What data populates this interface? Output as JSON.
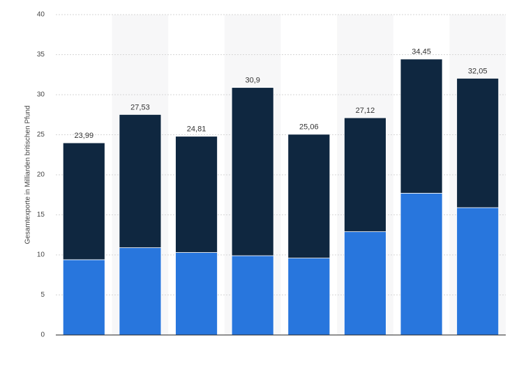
{
  "chart_data": {
    "type": "stacked-bar",
    "y_label": "Gesamtexporte in Milliarden britischen Pfund",
    "categories": [
      null,
      null,
      null,
      null,
      null,
      null,
      null,
      null
    ],
    "series": [
      {
        "color": "#2876dd",
        "values": [
          9.4,
          10.9,
          10.3,
          9.9,
          9.6,
          12.9,
          17.7,
          15.9
        ]
      },
      {
        "color": "#0f2740",
        "values": [
          14.59,
          16.63,
          14.51,
          21.0,
          15.46,
          14.22,
          16.75,
          16.15
        ]
      }
    ],
    "totals": [
      23.99,
      27.53,
      24.81,
      30.9,
      25.06,
      27.12,
      34.45,
      32.05
    ],
    "total_labels": [
      "23,99",
      "27,53",
      "24,81",
      "30,9",
      "25,06",
      "27,12",
      "34,45",
      "32,05"
    ],
    "ylim": [
      0,
      40
    ],
    "yticks": [
      0,
      5,
      10,
      15,
      20,
      25,
      30,
      35,
      40
    ],
    "grid": true
  }
}
